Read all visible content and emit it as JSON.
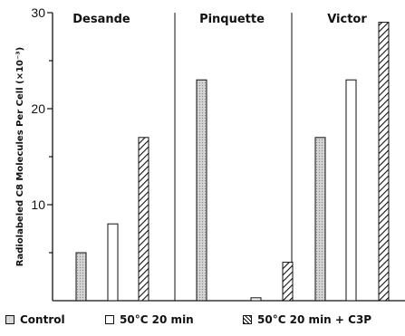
{
  "chart_data": {
    "type": "bar",
    "ylabel": "Radiolabeled C8 Molecules Per Cell (×10⁻³)",
    "ylim": [
      0,
      30
    ],
    "yticks": [
      10,
      20,
      30
    ],
    "panels": [
      {
        "name": "Desande",
        "values": {
          "Control": 5,
          "50°C 20 min": 8,
          "50°C 20 min + C3P": 17
        }
      },
      {
        "name": "Pinquette",
        "values": {
          "Control": 23,
          "50°C 20 min": 0.3,
          "50°C 20 min + C3P": 4
        }
      },
      {
        "name": "Victor",
        "values": {
          "Control": 17,
          "50°C 20 min": 23,
          "50°C 20 min + C3P": 29
        }
      }
    ],
    "series": [
      {
        "name": "Control",
        "fill": "#d8d8d8"
      },
      {
        "name": "50°C 20 min",
        "fill": "#ffffff"
      },
      {
        "name": "50°C 20 min + C3P",
        "fill": "hatch"
      }
    ],
    "legend_position": "bottom",
    "grid": false
  }
}
